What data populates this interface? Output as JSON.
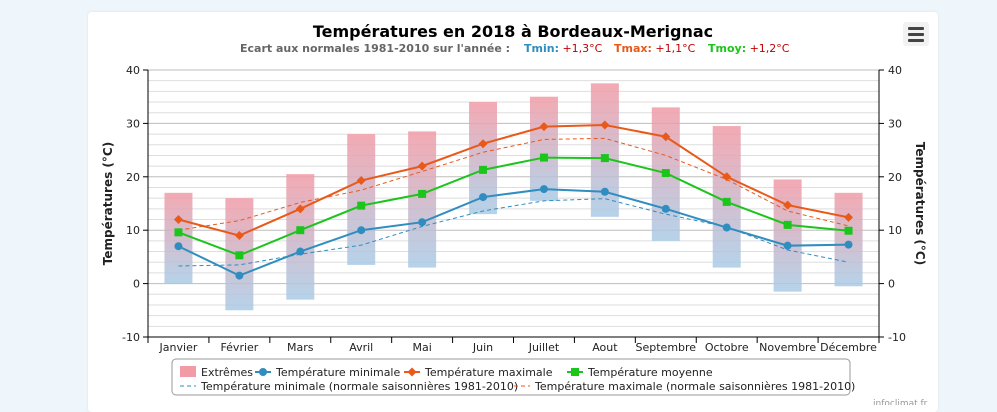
{
  "chart_data": {
    "type": "bar+line",
    "title": "Températures en 2018 à Bordeaux-Merignac",
    "subtitle": {
      "prefix": "Ecart aux normales 1981-2010 sur l'année :",
      "items": [
        {
          "label": "Tmin:",
          "value": "+1,3°C",
          "label_color": "#2f8dbf",
          "value_color": "#c00000"
        },
        {
          "label": "Tmax:",
          "value": "+1,1°C",
          "label_color": "#e8591a",
          "value_color": "#c00000"
        },
        {
          "label": "Tmoy:",
          "value": "+1,2°C",
          "label_color": "#1cc41c",
          "value_color": "#c00000"
        }
      ]
    },
    "ylabel_left": "Températures (°C)",
    "ylabel_right": "Températures (°C)",
    "ylim": [
      -10,
      40
    ],
    "yticks": [
      -10,
      0,
      10,
      20,
      30,
      40
    ],
    "grid": true,
    "categories": [
      "Janvier",
      "Février",
      "Mars",
      "Avril",
      "Mai",
      "Juin",
      "Juillet",
      "Aout",
      "Septembre",
      "Octobre",
      "Novembre",
      "Décembre"
    ],
    "extremes": {
      "name": "Extrêmes",
      "color_warm": "#f19ba6",
      "color_cold": "#a9cbe6",
      "low": [
        0,
        -5,
        -3,
        3.5,
        3,
        13,
        15.5,
        12.5,
        8,
        3,
        -1.5,
        -0.5
      ],
      "high": [
        17,
        16,
        20.5,
        28,
        28.5,
        34,
        35,
        37.5,
        33,
        29.5,
        19.5,
        17
      ]
    },
    "series": [
      {
        "name": "Température minimale",
        "color": "#2f8dbf",
        "marker": "circle",
        "values": [
          7,
          1.5,
          6,
          10,
          11.5,
          16.2,
          17.7,
          17.2,
          14,
          10.5,
          7.1,
          7.3
        ]
      },
      {
        "name": "Température maximale",
        "color": "#e8591a",
        "marker": "diamond",
        "values": [
          12,
          9,
          14,
          19.3,
          22,
          26.2,
          29.4,
          29.7,
          27.5,
          20,
          14.7,
          12.4
        ]
      },
      {
        "name": "Température moyenne",
        "color": "#1cc41c",
        "marker": "square",
        "values": [
          9.6,
          5.3,
          10,
          14.6,
          16.8,
          21.3,
          23.6,
          23.5,
          20.7,
          15.3,
          11,
          9.9
        ]
      }
    ],
    "normals": [
      {
        "name": "Température minimale (normale saisonnières 1981-2010)",
        "color": "#2f8dbf",
        "values": [
          3.3,
          3.5,
          5.5,
          7.2,
          10.7,
          13.6,
          15.5,
          15.9,
          13,
          10.6,
          6.3,
          4
        ]
      },
      {
        "name": "Température maximale (normale saisonnières 1981-2010)",
        "color": "#e8591a",
        "values": [
          10,
          11.8,
          15.2,
          17.5,
          21,
          24.6,
          27,
          27.2,
          24,
          19.5,
          13.6,
          10.8
        ]
      }
    ],
    "legend_position": "bottom",
    "credit": "infoclimat.fr"
  }
}
